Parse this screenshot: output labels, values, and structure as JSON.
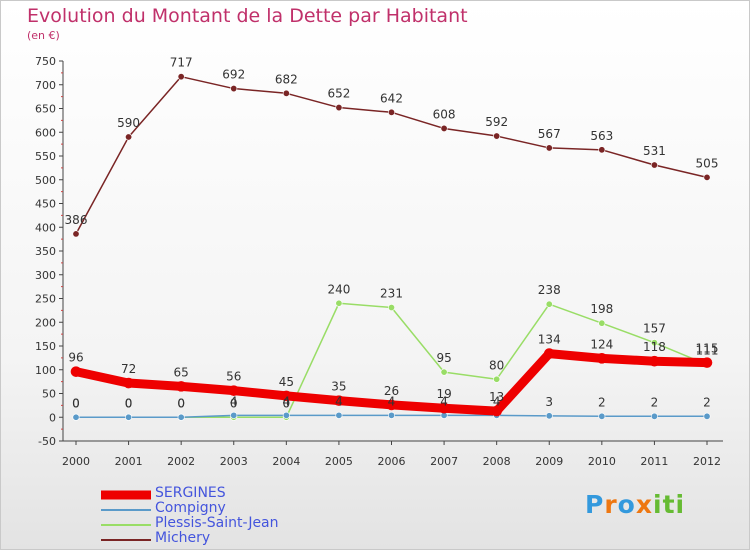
{
  "chart_data": {
    "type": "line",
    "title": "Evolution du Montant de la Dette par Habitant",
    "subtitle": "(en €)",
    "xlabel": "",
    "ylabel": "",
    "categories": [
      "2000",
      "2001",
      "2002",
      "2003",
      "2004",
      "2005",
      "2006",
      "2007",
      "2008",
      "2009",
      "2010",
      "2011",
      "2012"
    ],
    "ylim": [
      -50,
      750
    ],
    "yticks": [
      -50,
      0,
      50,
      100,
      150,
      200,
      250,
      300,
      350,
      400,
      450,
      500,
      550,
      600,
      650,
      700,
      750
    ],
    "grid": "none",
    "legend_position": "bottom-left",
    "series": [
      {
        "name": "SERGINES",
        "color": "#ee0000",
        "values": [
          96,
          72,
          65,
          56,
          45,
          35,
          26,
          19,
          13,
          134,
          124,
          118,
          115
        ],
        "labels": [
          "96",
          "72",
          "65",
          "56",
          "45",
          "35",
          "26",
          "19",
          "13",
          "134",
          "124",
          "118",
          "115"
        ]
      },
      {
        "name": "Compigny",
        "color": "#5a9ac9",
        "values": [
          0,
          0,
          0,
          4,
          4,
          4,
          4,
          4,
          4,
          3,
          2,
          2,
          2
        ],
        "labels": [
          "0",
          "0",
          "0",
          "4",
          "4",
          "4",
          "4",
          "4",
          "4",
          "3",
          "2",
          "2",
          "2"
        ]
      },
      {
        "name": "Plessis-Saint-Jean",
        "color": "#99dd66",
        "values": [
          0,
          0,
          0,
          0,
          0,
          240,
          231,
          95,
          80,
          238,
          198,
          157,
          111
        ],
        "labels": [
          "0",
          "0",
          "0",
          "0",
          "0",
          "240",
          "231",
          "95",
          "80",
          "238",
          "198",
          "157",
          "111"
        ]
      },
      {
        "name": "Michery",
        "color": "#7a2525",
        "values": [
          386,
          590,
          717,
          692,
          682,
          652,
          642,
          608,
          592,
          567,
          563,
          531,
          505
        ],
        "labels": [
          "386",
          "590",
          "717",
          "692",
          "682",
          "652",
          "642",
          "608",
          "592",
          "567",
          "563",
          "531",
          "505"
        ]
      }
    ]
  },
  "logo": {
    "letters": [
      "P",
      "r",
      "o",
      "x",
      "i",
      "t",
      "i"
    ],
    "colors": [
      "#3399dd",
      "#ee7711",
      "#3399dd",
      "#ee7711",
      "#66bb33",
      "#66bb33",
      "#66bb33"
    ]
  }
}
